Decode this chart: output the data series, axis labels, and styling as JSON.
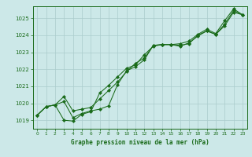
{
  "title": "Graphe pression niveau de la mer (hPa)",
  "bg_color": "#cce8e8",
  "grid_color": "#aacccc",
  "line_color": "#1a6b1a",
  "marker_color": "#1a6b1a",
  "xlim": [
    -0.5,
    23.5
  ],
  "ylim": [
    1018.5,
    1025.7
  ],
  "yticks": [
    1019,
    1020,
    1021,
    1022,
    1023,
    1024,
    1025
  ],
  "xticks": [
    0,
    1,
    2,
    3,
    4,
    5,
    6,
    7,
    8,
    9,
    10,
    11,
    12,
    13,
    14,
    15,
    16,
    17,
    18,
    19,
    20,
    21,
    22,
    23
  ],
  "series1": [
    1019.3,
    1019.8,
    1019.9,
    1020.1,
    1019.15,
    1019.4,
    1019.55,
    1019.65,
    1019.85,
    1021.1,
    1021.9,
    1022.15,
    1022.55,
    1023.4,
    1023.45,
    1023.45,
    1023.4,
    1023.5,
    1024.0,
    1024.25,
    1024.05,
    1024.55,
    1025.35,
    1025.2
  ],
  "series2": [
    1019.3,
    1019.8,
    1019.9,
    1019.0,
    1018.95,
    1019.35,
    1019.5,
    1020.6,
    1021.05,
    1021.55,
    1022.05,
    1022.25,
    1022.85,
    1023.35,
    1023.45,
    1023.45,
    1023.5,
    1023.65,
    1024.05,
    1024.35,
    1024.1,
    1024.85,
    1025.55,
    1025.2
  ],
  "series3": [
    1019.3,
    1019.8,
    1019.9,
    1020.4,
    1019.55,
    1019.65,
    1019.75,
    1020.25,
    1020.75,
    1021.25,
    1021.85,
    1022.35,
    1022.65,
    1023.4,
    1023.45,
    1023.45,
    1023.35,
    1023.55,
    1023.95,
    1024.25,
    1024.05,
    1024.65,
    1025.45,
    1025.2
  ]
}
